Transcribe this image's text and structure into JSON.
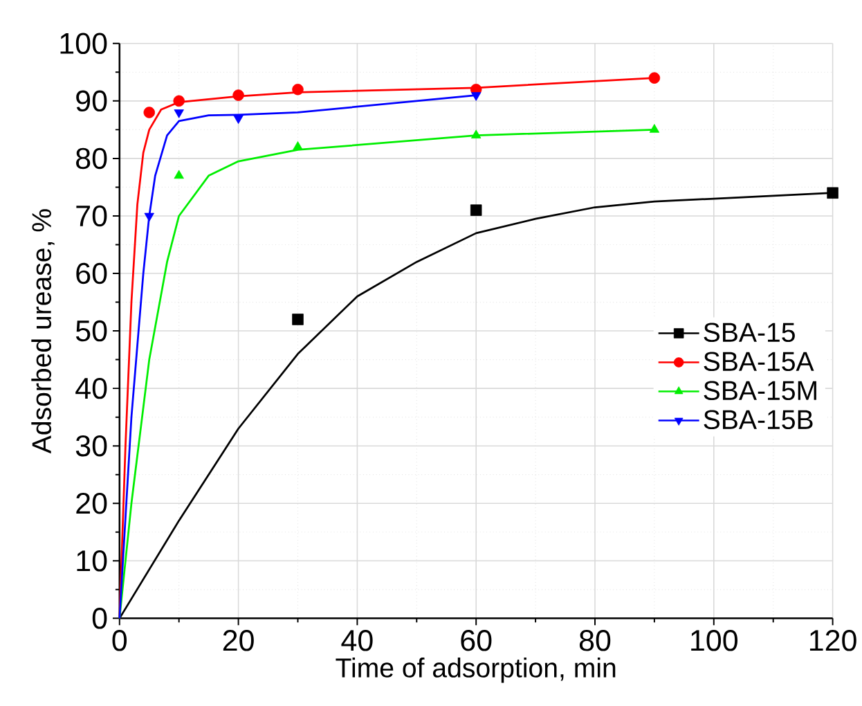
{
  "chart_data": {
    "type": "scatter",
    "xlabel": "Time of adsorption, min",
    "ylabel": "Adsorbed urease, %",
    "xlim": [
      0,
      120
    ],
    "ylim": [
      0,
      100
    ],
    "xticks": [
      0,
      20,
      40,
      60,
      80,
      100,
      120
    ],
    "yticks": [
      0,
      10,
      20,
      30,
      40,
      50,
      60,
      70,
      80,
      90,
      100
    ],
    "grid": true,
    "legend": "right",
    "series": [
      {
        "name": "SBA-15",
        "color": "#000000",
        "marker": "square",
        "x": [
          30,
          60,
          120
        ],
        "values": [
          52,
          71,
          74
        ]
      },
      {
        "name": "SBA-15A",
        "color": "#ff0000",
        "marker": "circle",
        "x": [
          5,
          10,
          20,
          30,
          60,
          90
        ],
        "values": [
          88,
          90,
          91,
          92,
          92,
          94
        ]
      },
      {
        "name": "SBA-15M",
        "color": "#00ee00",
        "marker": "triangle",
        "x": [
          10,
          30,
          60,
          90
        ],
        "values": [
          77,
          82,
          84,
          85
        ]
      },
      {
        "name": "SBA-15B",
        "color": "#0000ff",
        "marker": "triangle down",
        "x": [
          5,
          10,
          20,
          60
        ],
        "values": [
          70,
          88,
          87,
          91
        ]
      },
      {
        "type": "line",
        "color": "#000000",
        "marker": "none",
        "x": [
          0,
          10,
          20,
          30,
          40,
          50,
          60,
          70,
          80,
          90,
          100,
          120
        ],
        "values": [
          0,
          17,
          33,
          46,
          56,
          62,
          67,
          69.5,
          71.5,
          72.5,
          73,
          74
        ]
      },
      {
        "type": "line",
        "color": "#ff0000",
        "marker": "none",
        "x": [
          0,
          1,
          2,
          3,
          4,
          5,
          7,
          10,
          20,
          30,
          60,
          90
        ],
        "values": [
          0,
          30,
          55,
          72,
          81,
          85,
          88.5,
          89.8,
          90.8,
          91.5,
          92.3,
          94
        ]
      },
      {
        "type": "line",
        "color": "#00ee00",
        "marker": "none",
        "x": [
          0,
          2,
          5,
          8,
          10,
          15,
          20,
          30,
          60,
          90
        ],
        "values": [
          0,
          20,
          45,
          62,
          70,
          77,
          79.5,
          81.5,
          84,
          85
        ]
      },
      {
        "type": "line",
        "color": "#0000ff",
        "marker": "none",
        "x": [
          0,
          2,
          4,
          5,
          6,
          8,
          10,
          15,
          20,
          30,
          60
        ],
        "values": [
          0,
          35,
          60,
          70,
          77,
          84,
          86.5,
          87.5,
          87.6,
          88,
          91
        ]
      }
    ]
  }
}
